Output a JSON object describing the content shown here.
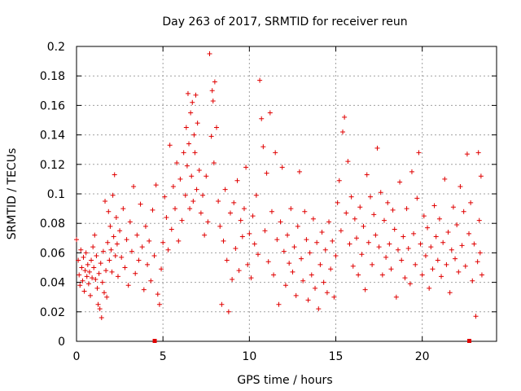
{
  "chart_data": {
    "type": "scatter",
    "title": "Day 263 of 2017, SRMTID for receiver reun",
    "xlabel": "GPS time / hours",
    "ylabel": "SRMTID / TECUs",
    "xlim": [
      0,
      24.3
    ],
    "ylim": [
      0,
      0.2
    ],
    "xticks": [
      "0",
      "5",
      "10",
      "15",
      "20"
    ],
    "yticks": [
      "0",
      "0.02",
      "0.04",
      "0.06",
      "0.08",
      "0.1",
      "0.12",
      "0.14",
      "0.16",
      "0.18",
      "0.2"
    ],
    "grid": true,
    "marker": "+",
    "color": "#e00000",
    "axis_markers_x": [
      4.5,
      22.7
    ],
    "series": [
      {
        "name": "SRMTID",
        "points": [
          [
            0.0,
            0.069
          ],
          [
            0.1,
            0.055
          ],
          [
            0.15,
            0.045
          ],
          [
            0.2,
            0.038
          ],
          [
            0.25,
            0.062
          ],
          [
            0.3,
            0.05
          ],
          [
            0.35,
            0.041
          ],
          [
            0.4,
            0.057
          ],
          [
            0.45,
            0.034
          ],
          [
            0.5,
            0.048
          ],
          [
            0.55,
            0.06
          ],
          [
            0.6,
            0.044
          ],
          [
            0.65,
            0.052
          ],
          [
            0.7,
            0.039
          ],
          [
            0.75,
            0.047
          ],
          [
            0.8,
            0.031
          ],
          [
            0.85,
            0.055
          ],
          [
            0.9,
            0.043
          ],
          [
            0.95,
            0.064
          ],
          [
            1.0,
            0.05
          ],
          [
            1.05,
            0.072
          ],
          [
            1.1,
            0.042
          ],
          [
            1.15,
            0.058
          ],
          [
            1.2,
            0.036
          ],
          [
            1.25,
            0.025
          ],
          [
            1.3,
            0.046
          ],
          [
            1.35,
            0.022
          ],
          [
            1.4,
            0.053
          ],
          [
            1.45,
            0.016
          ],
          [
            1.5,
            0.04
          ],
          [
            1.55,
            0.061
          ],
          [
            1.6,
            0.033
          ],
          [
            1.65,
            0.095
          ],
          [
            1.7,
            0.048
          ],
          [
            1.75,
            0.03
          ],
          [
            1.8,
            0.067
          ],
          [
            1.85,
            0.088
          ],
          [
            1.9,
            0.055
          ],
          [
            1.95,
            0.078
          ],
          [
            2.0,
            0.062
          ],
          [
            2.05,
            0.047
          ],
          [
            2.1,
            0.099
          ],
          [
            2.15,
            0.071
          ],
          [
            2.2,
            0.113
          ],
          [
            2.25,
            0.058
          ],
          [
            2.3,
            0.084
          ],
          [
            2.35,
            0.066
          ],
          [
            2.4,
            0.044
          ],
          [
            2.5,
            0.075
          ],
          [
            2.6,
            0.057
          ],
          [
            2.7,
            0.09
          ],
          [
            2.8,
            0.05
          ],
          [
            2.9,
            0.069
          ],
          [
            3.0,
            0.038
          ],
          [
            3.1,
            0.081
          ],
          [
            3.2,
            0.061
          ],
          [
            3.3,
            0.105
          ],
          [
            3.4,
            0.046
          ],
          [
            3.5,
            0.072
          ],
          [
            3.6,
            0.055
          ],
          [
            3.7,
            0.093
          ],
          [
            3.8,
            0.064
          ],
          [
            3.9,
            0.035
          ],
          [
            4.0,
            0.078
          ],
          [
            4.1,
            0.052
          ],
          [
            4.2,
            0.068
          ],
          [
            4.3,
            0.041
          ],
          [
            4.4,
            0.089
          ],
          [
            4.5,
            0.058
          ],
          [
            4.6,
            0.106
          ],
          [
            4.7,
            0.032
          ],
          [
            4.8,
            0.025
          ],
          [
            4.9,
            0.049
          ],
          [
            5.0,
            0.067
          ],
          [
            5.1,
            0.098
          ],
          [
            5.2,
            0.084
          ],
          [
            5.3,
            0.062
          ],
          [
            5.4,
            0.133
          ],
          [
            5.5,
            0.076
          ],
          [
            5.6,
            0.105
          ],
          [
            5.7,
            0.09
          ],
          [
            5.8,
            0.121
          ],
          [
            5.9,
            0.068
          ],
          [
            6.0,
            0.11
          ],
          [
            6.1,
            0.082
          ],
          [
            6.2,
            0.128
          ],
          [
            6.3,
            0.099
          ],
          [
            6.35,
            0.145
          ],
          [
            6.4,
            0.119
          ],
          [
            6.45,
            0.168
          ],
          [
            6.5,
            0.134
          ],
          [
            6.55,
            0.09
          ],
          [
            6.6,
            0.155
          ],
          [
            6.65,
            0.112
          ],
          [
            6.7,
            0.162
          ],
          [
            6.75,
            0.095
          ],
          [
            6.8,
            0.14
          ],
          [
            6.85,
            0.128
          ],
          [
            6.9,
            0.167
          ],
          [
            6.95,
            0.103
          ],
          [
            7.0,
            0.148
          ],
          [
            7.1,
            0.116
          ],
          [
            7.2,
            0.087
          ],
          [
            7.3,
            0.099
          ],
          [
            7.4,
            0.072
          ],
          [
            7.5,
            0.112
          ],
          [
            7.6,
            0.081
          ],
          [
            7.7,
            0.195
          ],
          [
            7.8,
            0.139
          ],
          [
            7.85,
            0.17
          ],
          [
            7.9,
            0.163
          ],
          [
            7.95,
            0.121
          ],
          [
            8.0,
            0.176
          ],
          [
            8.1,
            0.145
          ],
          [
            8.2,
            0.095
          ],
          [
            8.3,
            0.078
          ],
          [
            8.4,
            0.025
          ],
          [
            8.5,
            0.068
          ],
          [
            8.6,
            0.103
          ],
          [
            8.7,
            0.055
          ],
          [
            8.8,
            0.02
          ],
          [
            8.9,
            0.087
          ],
          [
            9.0,
            0.042
          ],
          [
            9.1,
            0.094
          ],
          [
            9.2,
            0.063
          ],
          [
            9.3,
            0.109
          ],
          [
            9.4,
            0.048
          ],
          [
            9.5,
            0.082
          ],
          [
            9.6,
            0.071
          ],
          [
            9.7,
            0.09
          ],
          [
            9.8,
            0.118
          ],
          [
            9.9,
            0.052
          ],
          [
            10.0,
            0.073
          ],
          [
            10.1,
            0.043
          ],
          [
            10.2,
            0.085
          ],
          [
            10.3,
            0.066
          ],
          [
            10.4,
            0.099
          ],
          [
            10.5,
            0.059
          ],
          [
            10.6,
            0.177
          ],
          [
            10.7,
            0.151
          ],
          [
            10.8,
            0.132
          ],
          [
            10.9,
            0.075
          ],
          [
            11.0,
            0.114
          ],
          [
            11.1,
            0.054
          ],
          [
            11.2,
            0.155
          ],
          [
            11.3,
            0.088
          ],
          [
            11.4,
            0.045
          ],
          [
            11.5,
            0.128
          ],
          [
            11.6,
            0.069
          ],
          [
            11.7,
            0.025
          ],
          [
            11.8,
            0.081
          ],
          [
            11.9,
            0.118
          ],
          [
            12.0,
            0.061
          ],
          [
            12.1,
            0.038
          ],
          [
            12.2,
            0.072
          ],
          [
            12.3,
            0.053
          ],
          [
            12.4,
            0.09
          ],
          [
            12.5,
            0.047
          ],
          [
            12.6,
            0.064
          ],
          [
            12.7,
            0.031
          ],
          [
            12.8,
            0.078
          ],
          [
            12.9,
            0.115
          ],
          [
            13.0,
            0.056
          ],
          [
            13.1,
            0.041
          ],
          [
            13.2,
            0.088
          ],
          [
            13.3,
            0.069
          ],
          [
            13.4,
            0.028
          ],
          [
            13.5,
            0.06
          ],
          [
            13.6,
            0.045
          ],
          [
            13.7,
            0.083
          ],
          [
            13.8,
            0.036
          ],
          [
            13.9,
            0.067
          ],
          [
            14.0,
            0.022
          ],
          [
            14.1,
            0.052
          ],
          [
            14.2,
            0.074
          ],
          [
            14.3,
            0.04
          ],
          [
            14.4,
            0.062
          ],
          [
            14.5,
            0.033
          ],
          [
            14.6,
            0.081
          ],
          [
            14.7,
            0.049
          ],
          [
            14.8,
            0.068
          ],
          [
            14.9,
            0.03
          ],
          [
            15.0,
            0.058
          ],
          [
            15.1,
            0.094
          ],
          [
            15.2,
            0.109
          ],
          [
            15.3,
            0.075
          ],
          [
            15.4,
            0.142
          ],
          [
            15.5,
            0.152
          ],
          [
            15.6,
            0.087
          ],
          [
            15.7,
            0.122
          ],
          [
            15.8,
            0.066
          ],
          [
            15.9,
            0.098
          ],
          [
            16.0,
            0.051
          ],
          [
            16.1,
            0.083
          ],
          [
            16.2,
            0.07
          ],
          [
            16.3,
            0.045
          ],
          [
            16.4,
            0.091
          ],
          [
            16.5,
            0.059
          ],
          [
            16.6,
            0.078
          ],
          [
            16.7,
            0.035
          ],
          [
            16.8,
            0.113
          ],
          [
            16.9,
            0.067
          ],
          [
            17.0,
            0.098
          ],
          [
            17.1,
            0.052
          ],
          [
            17.2,
            0.086
          ],
          [
            17.3,
            0.072
          ],
          [
            17.4,
            0.131
          ],
          [
            17.5,
            0.064
          ],
          [
            17.6,
            0.101
          ],
          [
            17.7,
            0.045
          ],
          [
            17.8,
            0.082
          ],
          [
            17.9,
            0.057
          ],
          [
            18.0,
            0.094
          ],
          [
            18.1,
            0.066
          ],
          [
            18.2,
            0.049
          ],
          [
            18.3,
            0.089
          ],
          [
            18.4,
            0.076
          ],
          [
            18.5,
            0.03
          ],
          [
            18.6,
            0.062
          ],
          [
            18.7,
            0.108
          ],
          [
            18.8,
            0.055
          ],
          [
            18.9,
            0.071
          ],
          [
            19.0,
            0.043
          ],
          [
            19.1,
            0.09
          ],
          [
            19.2,
            0.063
          ],
          [
            19.3,
            0.039
          ],
          [
            19.4,
            0.115
          ],
          [
            19.5,
            0.073
          ],
          [
            19.6,
            0.052
          ],
          [
            19.7,
            0.097
          ],
          [
            19.8,
            0.128
          ],
          [
            19.9,
            0.066
          ],
          [
            20.0,
            0.045
          ],
          [
            20.1,
            0.085
          ],
          [
            20.2,
            0.058
          ],
          [
            20.3,
            0.077
          ],
          [
            20.4,
            0.036
          ],
          [
            20.5,
            0.064
          ],
          [
            20.6,
            0.049
          ],
          [
            20.7,
            0.092
          ],
          [
            20.8,
            0.071
          ],
          [
            20.9,
            0.055
          ],
          [
            21.0,
            0.083
          ],
          [
            21.1,
            0.044
          ],
          [
            21.2,
            0.067
          ],
          [
            21.3,
            0.11
          ],
          [
            21.4,
            0.052
          ],
          [
            21.5,
            0.074
          ],
          [
            21.6,
            0.033
          ],
          [
            21.7,
            0.062
          ],
          [
            21.8,
            0.091
          ],
          [
            21.9,
            0.056
          ],
          [
            22.0,
            0.079
          ],
          [
            22.1,
            0.047
          ],
          [
            22.2,
            0.105
          ],
          [
            22.3,
            0.065
          ],
          [
            22.4,
            0.088
          ],
          [
            22.5,
            0.051
          ],
          [
            22.6,
            0.127
          ],
          [
            22.7,
            0.073
          ],
          [
            22.8,
            0.094
          ],
          [
            22.9,
            0.041
          ],
          [
            23.0,
            0.066
          ],
          [
            23.1,
            0.017
          ],
          [
            23.2,
            0.054
          ],
          [
            23.25,
            0.128
          ],
          [
            23.3,
            0.082
          ],
          [
            23.35,
            0.06
          ],
          [
            23.4,
            0.112
          ],
          [
            23.45,
            0.045
          ]
        ]
      }
    ]
  }
}
